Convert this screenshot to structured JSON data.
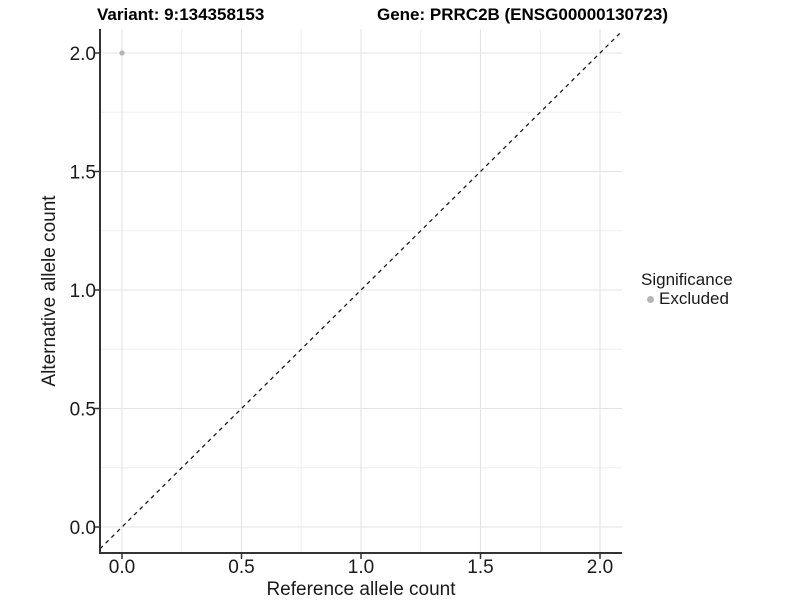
{
  "chart_data": {
    "type": "scatter",
    "title_left": "Variant: 9:134358153",
    "title_right": "Gene: PRRC2B (ENSG00000130723)",
    "xlabel": "Reference allele count",
    "ylabel": "Alternative allele count",
    "xticks": [
      "0.0",
      "0.5",
      "1.0",
      "1.5",
      "2.0"
    ],
    "yticks": [
      "0.0",
      "0.5",
      "1.0",
      "1.5",
      "2.0"
    ],
    "xtick_values": [
      0,
      0.5,
      1,
      1.5,
      2
    ],
    "ytick_values": [
      0,
      0.5,
      1,
      1.5,
      2
    ],
    "minor_ticks": [
      0.25,
      0.75,
      1.25,
      1.75
    ],
    "xlim": [
      -0.09,
      2.09
    ],
    "ylim": [
      -0.11,
      2.1
    ],
    "grid": "major+minor on white background",
    "reference_line": {
      "equation": "y = x",
      "style": "dashed",
      "color": "#1a1a1a"
    },
    "series": [
      {
        "name": "Excluded",
        "color": "#b5b5b5",
        "points": [
          [
            0,
            2
          ]
        ]
      }
    ],
    "legend": {
      "title": "Significance",
      "position": "right",
      "entries": [
        {
          "label": "Excluded",
          "color": "#b5b5b5"
        }
      ]
    },
    "style": {
      "major_grid_color": "#e3e3e3",
      "minor_grid_color": "#efefef",
      "axis_color": "#333333",
      "text_color": "#1a1a1a",
      "point_color": "#b5b5b5"
    }
  }
}
